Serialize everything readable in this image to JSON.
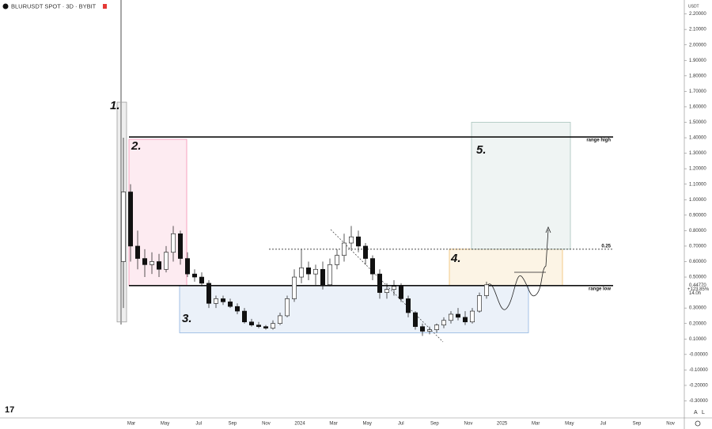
{
  "header": {
    "symbol": "BLURUSDT SPOT · 3D · BYBIT",
    "currency": "USDT"
  },
  "chart_data": {
    "type": "candlestick",
    "open": [
      0.6,
      1.05,
      0.7,
      0.62,
      0.58,
      0.6,
      0.55,
      0.66,
      0.78,
      0.62,
      0.52,
      0.5,
      0.46,
      0.33,
      0.36,
      0.34,
      0.31,
      0.28,
      0.21,
      0.19,
      0.18,
      0.17,
      0.2,
      0.25,
      0.36,
      0.5,
      0.56,
      0.52,
      0.55,
      0.45,
      0.58,
      0.64,
      0.72,
      0.76,
      0.7,
      0.62,
      0.52,
      0.4,
      0.42,
      0.44,
      0.36,
      0.27,
      0.18,
      0.15,
      0.16,
      0.19,
      0.22,
      0.26,
      0.24,
      0.21,
      0.28,
      0.38
    ],
    "high": [
      1.4,
      1.1,
      0.8,
      0.68,
      0.66,
      0.65,
      0.7,
      0.83,
      0.8,
      0.66,
      0.55,
      0.53,
      0.48,
      0.38,
      0.38,
      0.36,
      0.33,
      0.3,
      0.23,
      0.21,
      0.19,
      0.22,
      0.27,
      0.38,
      0.55,
      0.68,
      0.6,
      0.58,
      0.6,
      0.62,
      0.68,
      0.78,
      0.83,
      0.8,
      0.72,
      0.64,
      0.55,
      0.46,
      0.48,
      0.46,
      0.38,
      0.28,
      0.2,
      0.18,
      0.2,
      0.24,
      0.28,
      0.3,
      0.28,
      0.3,
      0.4,
      0.47
    ],
    "low": [
      0.3,
      0.6,
      0.55,
      0.5,
      0.52,
      0.5,
      0.53,
      0.6,
      0.58,
      0.5,
      0.47,
      0.44,
      0.3,
      0.3,
      0.32,
      0.3,
      0.26,
      0.2,
      0.18,
      0.17,
      0.16,
      0.16,
      0.19,
      0.24,
      0.34,
      0.46,
      0.48,
      0.45,
      0.42,
      0.44,
      0.55,
      0.6,
      0.68,
      0.66,
      0.58,
      0.48,
      0.36,
      0.36,
      0.38,
      0.34,
      0.24,
      0.16,
      0.12,
      0.13,
      0.14,
      0.17,
      0.2,
      0.22,
      0.19,
      0.2,
      0.27,
      0.36
    ],
    "close": [
      1.05,
      0.7,
      0.62,
      0.58,
      0.6,
      0.55,
      0.66,
      0.78,
      0.62,
      0.52,
      0.5,
      0.46,
      0.33,
      0.36,
      0.34,
      0.31,
      0.28,
      0.21,
      0.19,
      0.18,
      0.17,
      0.2,
      0.25,
      0.36,
      0.5,
      0.56,
      0.52,
      0.55,
      0.45,
      0.58,
      0.64,
      0.72,
      0.76,
      0.7,
      0.62,
      0.52,
      0.4,
      0.42,
      0.44,
      0.36,
      0.27,
      0.18,
      0.15,
      0.16,
      0.19,
      0.22,
      0.26,
      0.24,
      0.21,
      0.28,
      0.38,
      0.45
    ],
    "ylim": [
      -0.41,
      2.29
    ],
    "yticks": [
      {
        "value": 2.2,
        "label": "2.20000"
      },
      {
        "value": 2.1,
        "label": "2.10000"
      },
      {
        "value": 2,
        "label": "2.00000"
      },
      {
        "value": 1.9,
        "label": "1.90000"
      },
      {
        "value": 1.8,
        "label": "1.80000"
      },
      {
        "value": 1.7,
        "label": "1.70000"
      },
      {
        "value": 1.6,
        "label": "1.60000"
      },
      {
        "value": 1.5,
        "label": "1.50000"
      },
      {
        "value": 1.4,
        "label": "1.40000"
      },
      {
        "value": 1.3,
        "label": "1.30000"
      },
      {
        "value": 1.2,
        "label": "1.20000"
      },
      {
        "value": 1.1,
        "label": "1.10000"
      },
      {
        "value": 1,
        "label": "1.00000"
      },
      {
        "value": 0.9,
        "label": "0.90000"
      },
      {
        "value": 0.8,
        "label": "0.80000"
      },
      {
        "value": 0.7,
        "label": "0.70000"
      },
      {
        "value": 0.6,
        "label": "0.60000"
      },
      {
        "value": 0.5,
        "label": "0.50000"
      },
      {
        "value": 0.3,
        "label": "0.30000"
      },
      {
        "value": 0.2,
        "label": "0.20000"
      },
      {
        "value": 0.1,
        "label": "0.10000"
      },
      {
        "value": 0,
        "label": "-0.00000"
      },
      {
        "value": -0.1,
        "label": "-0.10000"
      },
      {
        "value": -0.2,
        "label": "-0.20000"
      },
      {
        "value": -0.3,
        "label": "-0.30000"
      }
    ],
    "x_labels": [
      "Mar",
      "May",
      "Jul",
      "Sep",
      "Nov",
      "2024",
      "Mar",
      "May",
      "Jul",
      "Sep",
      "Nov",
      "2025",
      "Mar",
      "May",
      "Jul",
      "Sep",
      "Nov"
    ],
    "levels": [
      {
        "label": "range high",
        "value": 1.405
      },
      {
        "label": "range low",
        "value": 0.445
      },
      {
        "label": "0.25",
        "value": 0.68
      }
    ],
    "zones": [
      {
        "label": "1.",
        "top": 1.63,
        "bottom": 0.21,
        "color": "#9e9e9e"
      },
      {
        "label": "2.",
        "top": 1.39,
        "bottom": 0.445,
        "color": "#f48fb1"
      },
      {
        "label": "3.",
        "top": 0.445,
        "bottom": 0.14,
        "color": "#90b4e0"
      },
      {
        "label": "4.",
        "top": 0.68,
        "bottom": 0.445,
        "color": "#f0c070"
      },
      {
        "label": "5.",
        "top": 1.5,
        "bottom": 0.68,
        "color": "#a8c4bc"
      }
    ],
    "last_price": {
      "value": 0.4477,
      "label": "0.44770"
    },
    "change": "+123.85%",
    "countdown": "14.0h"
  },
  "footer": {
    "scale_buttons": [
      "A",
      "L"
    ]
  }
}
